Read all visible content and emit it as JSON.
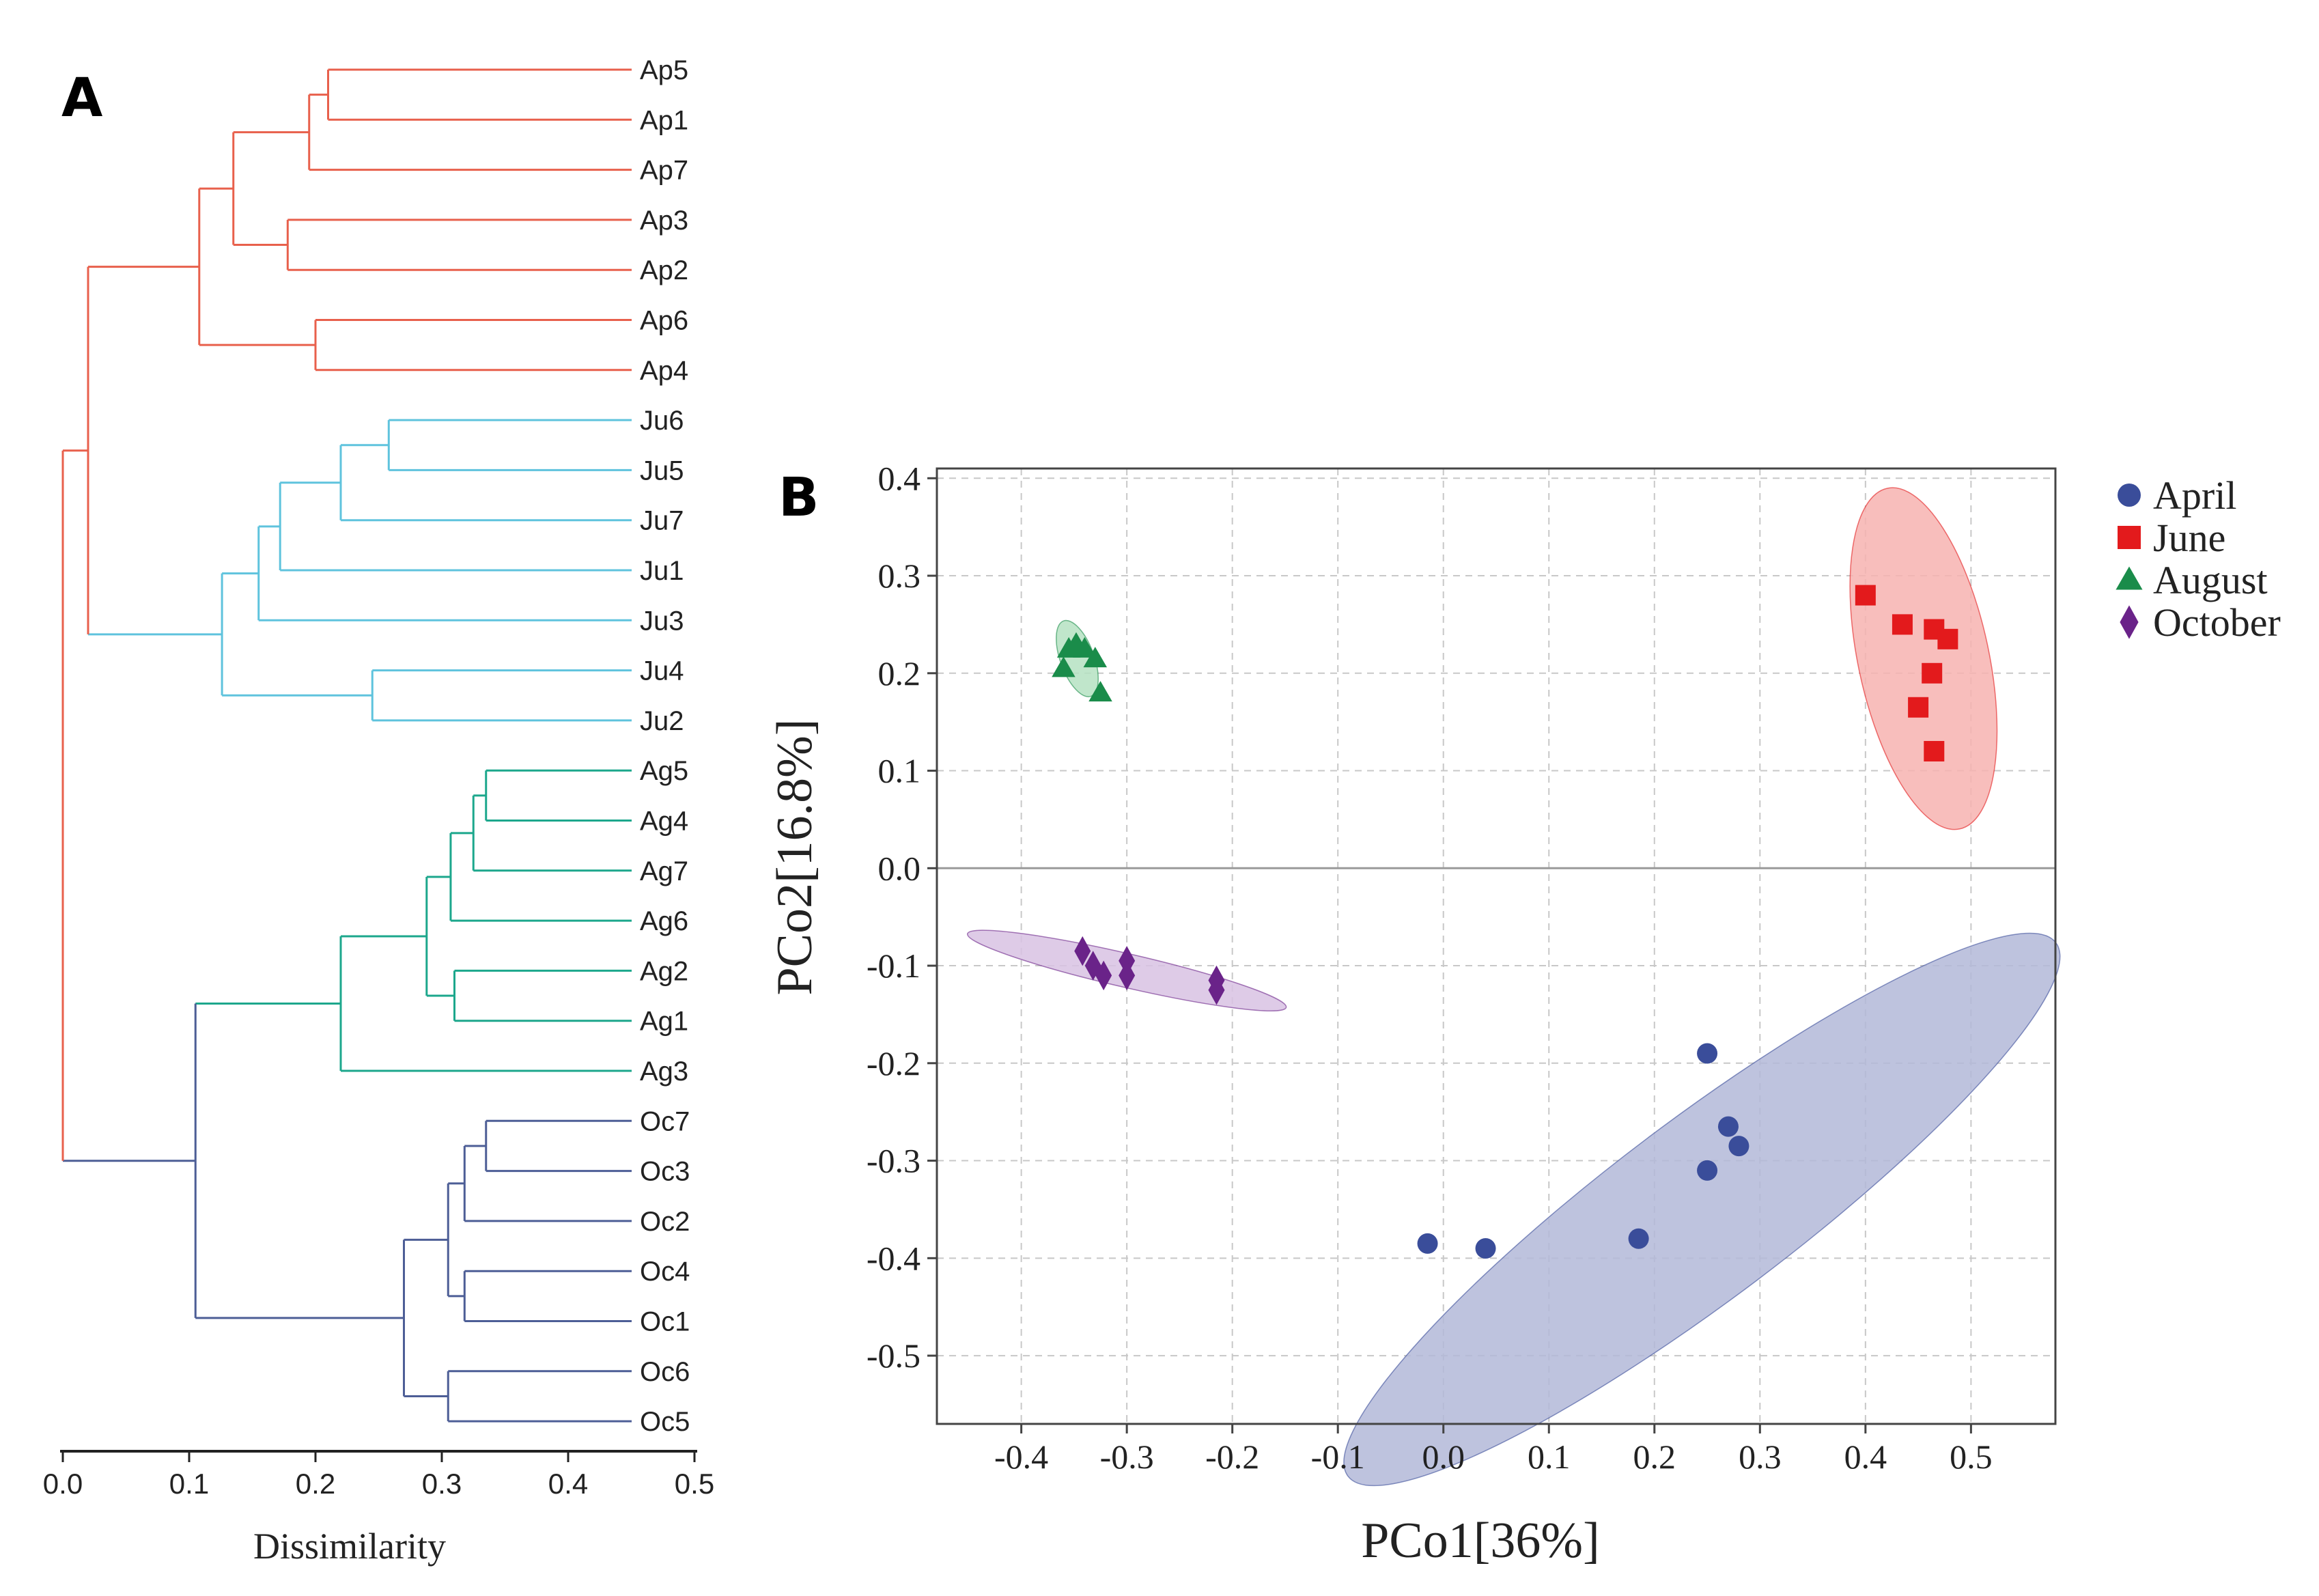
{
  "panels": {
    "a_label": "A",
    "b_label": "B"
  },
  "chart_data": [
    {
      "type": "dendrogram",
      "panel": "A",
      "xlabel": "Dissimilarity",
      "xlim": [
        0.0,
        0.5
      ],
      "xticks": [
        "0.0",
        "0.1",
        "0.2",
        "0.3",
        "0.4",
        "0.5"
      ],
      "leaves": [
        "Ap5",
        "Ap1",
        "Ap7",
        "Ap3",
        "Ap2",
        "Ap6",
        "Ap4",
        "Ju6",
        "Ju5",
        "Ju7",
        "Ju1",
        "Ju3",
        "Ju4",
        "Ju2",
        "Ag5",
        "Ag4",
        "Ag7",
        "Ag6",
        "Ag2",
        "Ag1",
        "Ag3",
        "Oc7",
        "Oc3",
        "Oc2",
        "Oc4",
        "Oc1",
        "Oc6",
        "Oc5"
      ],
      "colors": {
        "April": "#e8604c",
        "June": "#5fc3dd",
        "August": "#1ca78c",
        "October": "#4d5e96"
      },
      "merges": [
        {
          "id": "a1",
          "left": "Ap5",
          "right": "Ap1",
          "height": 0.21,
          "color": "April"
        },
        {
          "id": "a2",
          "left": "a1",
          "right": "Ap7",
          "height": 0.195,
          "color": "April"
        },
        {
          "id": "a3",
          "left": "Ap3",
          "right": "Ap2",
          "height": 0.178,
          "color": "April"
        },
        {
          "id": "a4",
          "left": "a2",
          "right": "a3",
          "height": 0.135,
          "color": "April"
        },
        {
          "id": "a5",
          "left": "Ap6",
          "right": "Ap4",
          "height": 0.2,
          "color": "April"
        },
        {
          "id": "a6",
          "left": "a4",
          "right": "a5",
          "height": 0.108,
          "color": "April"
        },
        {
          "id": "j1",
          "left": "Ju6",
          "right": "Ju5",
          "height": 0.258,
          "color": "June"
        },
        {
          "id": "j2",
          "left": "j1",
          "right": "Ju7",
          "height": 0.22,
          "color": "June"
        },
        {
          "id": "j3",
          "left": "j2",
          "right": "Ju1",
          "height": 0.172,
          "color": "June"
        },
        {
          "id": "j4",
          "left": "j3",
          "right": "Ju3",
          "height": 0.155,
          "color": "June"
        },
        {
          "id": "j5",
          "left": "Ju4",
          "right": "Ju2",
          "height": 0.245,
          "color": "June"
        },
        {
          "id": "j6",
          "left": "j4",
          "right": "j5",
          "height": 0.126,
          "color": "June"
        },
        {
          "id": "g1",
          "left": "Ag5",
          "right": "Ag4",
          "height": 0.335,
          "color": "August"
        },
        {
          "id": "g2",
          "left": "g1",
          "right": "Ag7",
          "height": 0.325,
          "color": "August"
        },
        {
          "id": "g3",
          "left": "g2",
          "right": "Ag6",
          "height": 0.307,
          "color": "August"
        },
        {
          "id": "g4",
          "left": "Ag2",
          "right": "Ag1",
          "height": 0.31,
          "color": "August"
        },
        {
          "id": "g5",
          "left": "g3",
          "right": "g4",
          "height": 0.288,
          "color": "August"
        },
        {
          "id": "g6",
          "left": "g5",
          "right": "Ag3",
          "height": 0.22,
          "color": "August"
        },
        {
          "id": "o1",
          "left": "Oc7",
          "right": "Oc3",
          "height": 0.335,
          "color": "October"
        },
        {
          "id": "o2",
          "left": "o1",
          "right": "Oc2",
          "height": 0.318,
          "color": "October"
        },
        {
          "id": "o3",
          "left": "Oc4",
          "right": "Oc1",
          "height": 0.318,
          "color": "October"
        },
        {
          "id": "o4",
          "left": "o2",
          "right": "o3",
          "height": 0.305,
          "color": "October"
        },
        {
          "id": "o5",
          "left": "Oc6",
          "right": "Oc5",
          "height": 0.305,
          "color": "October"
        },
        {
          "id": "o6",
          "left": "o4",
          "right": "o5",
          "height": 0.27,
          "color": "October"
        },
        {
          "id": "m1",
          "left": "a6",
          "right": "j6",
          "height": 0.02,
          "color": "April"
        },
        {
          "id": "m2",
          "left": "g6",
          "right": "o6",
          "height": 0.105,
          "color": "October"
        },
        {
          "id": "m3",
          "left": "m1",
          "right": "m2",
          "height": 0.0,
          "color": "April"
        }
      ]
    },
    {
      "type": "scatter",
      "panel": "B",
      "xlabel": "PCo1[36%]",
      "ylabel": "PCo2[16.8%]",
      "xlim": [
        -0.48,
        0.58
      ],
      "ylim": [
        -0.57,
        0.41
      ],
      "xticks": [
        -0.4,
        -0.3,
        -0.2,
        -0.1,
        0.0,
        0.1,
        0.2,
        0.3,
        0.4,
        0.5
      ],
      "yticks": [
        0.4,
        0.3,
        0.2,
        0.1,
        0.0,
        -0.1,
        -0.2,
        -0.3,
        -0.4,
        -0.5
      ],
      "xtick_labels": [
        "-0.4",
        "-0.3",
        "-0.2",
        "-0.1",
        "0.0",
        "0.1",
        "0.2",
        "0.3",
        "0.4",
        "0.5"
      ],
      "ytick_labels": [
        "0.4",
        "0.3",
        "0.2",
        "0.1",
        "0.0",
        "-0.1",
        "-0.2",
        "-0.3",
        "-0.4",
        "-0.5"
      ],
      "grid": true,
      "legend_position": "top-right outside",
      "series": [
        {
          "name": "April",
          "marker": "circle",
          "color": "#3a4d9a",
          "fill": "#b3b8d8",
          "points": [
            [
              -0.015,
              -0.385
            ],
            [
              0.04,
              -0.39
            ],
            [
              0.185,
              -0.38
            ],
            [
              0.25,
              -0.19
            ],
            [
              0.27,
              -0.265
            ],
            [
              0.28,
              -0.285
            ],
            [
              0.25,
              -0.31
            ]
          ],
          "ellipse": {
            "cx": 0.245,
            "cy": -0.35,
            "a": 0.42,
            "b": 0.085,
            "angle_deg": 37
          }
        },
        {
          "name": "June",
          "marker": "square",
          "color": "#e31a1c",
          "fill": "#f7b3b0",
          "points": [
            [
              0.4,
              0.28
            ],
            [
              0.435,
              0.25
            ],
            [
              0.465,
              0.245
            ],
            [
              0.478,
              0.235
            ],
            [
              0.463,
              0.2
            ],
            [
              0.45,
              0.165
            ],
            [
              0.465,
              0.12
            ]
          ],
          "ellipse": {
            "cx": 0.455,
            "cy": 0.215,
            "a": 0.165,
            "b": 0.062,
            "angle_deg": -78
          }
        },
        {
          "name": "August",
          "marker": "triangle",
          "color": "#1a8c4a",
          "fill": "#b5e2c2",
          "points": [
            [
              -0.355,
              0.225
            ],
            [
              -0.348,
              0.23
            ],
            [
              -0.34,
              0.225
            ],
            [
              -0.33,
              0.215
            ],
            [
              -0.36,
              0.205
            ],
            [
              -0.325,
              0.18
            ]
          ],
          "ellipse": {
            "cx": -0.347,
            "cy": 0.215,
            "a": 0.038,
            "b": 0.016,
            "angle_deg": -70
          }
        },
        {
          "name": "October",
          "marker": "diamond",
          "color": "#6a2389",
          "fill": "#d8c2e3",
          "points": [
            [
              -0.342,
              -0.085
            ],
            [
              -0.332,
              -0.1
            ],
            [
              -0.322,
              -0.11
            ],
            [
              -0.3,
              -0.095
            ],
            [
              -0.3,
              -0.11
            ],
            [
              -0.215,
              -0.115
            ],
            [
              -0.215,
              -0.125
            ]
          ],
          "ellipse": {
            "cx": -0.3,
            "cy": -0.105,
            "a": 0.155,
            "b": 0.016,
            "angle_deg": -13
          }
        }
      ]
    }
  ]
}
